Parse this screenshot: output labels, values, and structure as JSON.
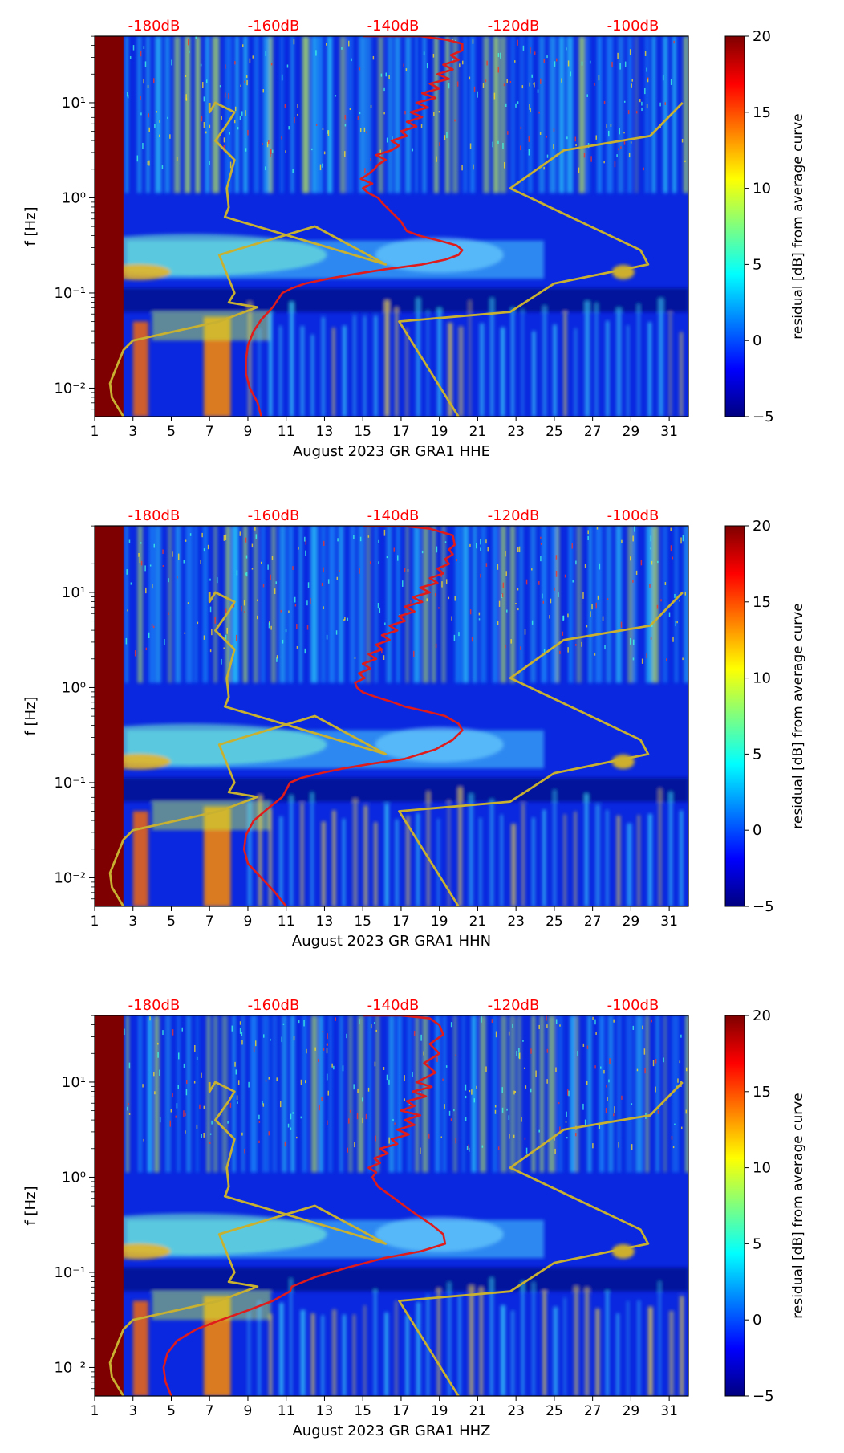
{
  "figure": {
    "station": "August 2023 GR GRA1",
    "colorbar": {
      "label": "residual [dB] from average curve",
      "ticks": [
        "20",
        "15",
        "10",
        "5",
        "0",
        "−5"
      ],
      "colors": [
        "#00007f",
        "#0000ff",
        "#007fff",
        "#00ffff",
        "#7fff7f",
        "#ffff00",
        "#ff7f00",
        "#ff0000",
        "#7f0000"
      ]
    },
    "colors": {
      "text": "#000000",
      "db_label": "#ff0000",
      "mean_curve": "#e01b1b",
      "model_curve": "#c8b030"
    }
  },
  "chart_data": [
    {
      "type": "heatmap",
      "channel": "HHE",
      "xlabel": "August 2023 GR GRA1  HHE",
      "ylabel": "f [Hz]",
      "x_ticks": [
        "1",
        "3",
        "5",
        "7",
        "9",
        "11",
        "13",
        "15",
        "17",
        "19",
        "21",
        "23",
        "25",
        "27",
        "29",
        "31"
      ],
      "y_ticks": [
        "10¹",
        "10⁰",
        "10⁻¹",
        "10⁻²"
      ],
      "top_db_ticks": [
        "-180dB",
        "-160dB",
        "-140dB",
        "-120dB",
        "-100dB"
      ],
      "xlim": [
        1,
        32
      ],
      "ylim_log10": [
        -2.3,
        1.7
      ],
      "clim": [
        -5,
        20
      ],
      "overlays": [
        {
          "name": "low noise model",
          "x_day": [
            2.5,
            1.9,
            1.8,
            2.5,
            3.0,
            7.5,
            9.5,
            8.0,
            8.3,
            7.5,
            12.5,
            16.2,
            7.8,
            8.0,
            7.9,
            8.3,
            7.3,
            8.0,
            8.3,
            7.3,
            7.0,
            7.0
          ],
          "log10_f": [
            -2.3,
            -2.1,
            -1.95,
            -1.6,
            -1.5,
            -1.3,
            -1.15,
            -1.1,
            -1.0,
            -0.6,
            -0.3,
            -0.7,
            -0.2,
            -0.1,
            0.1,
            0.4,
            0.6,
            0.8,
            0.9,
            1.0,
            0.9,
            1.0
          ]
        },
        {
          "name": "high noise model",
          "x_day": [
            20.0,
            16.9,
            22.7,
            25.0,
            29.9,
            29.5,
            22.7,
            25.5,
            30.0,
            31.7
          ],
          "log10_f": [
            -2.3,
            -1.3,
            -1.2,
            -0.9,
            -0.7,
            -0.55,
            0.1,
            0.5,
            0.65,
            1.0
          ]
        },
        {
          "name": "mean PSD",
          "x_day": [
            9.7,
            9.5,
            9.1,
            8.9,
            8.9,
            9.0,
            9.3,
            9.7,
            10.3,
            10.8,
            11.3,
            12.0,
            13.2,
            14.6,
            16.2,
            18.1,
            19.3,
            20.0,
            20.2,
            19.9,
            19.0,
            18.0,
            17.3,
            17.0,
            16.5,
            16.0,
            15.8,
            15.3,
            15.0,
            15.5,
            14.9,
            15.3,
            15.6,
            15.8,
            16.2,
            15.7,
            16.5,
            16.9,
            16.5,
            17.3,
            17.0,
            17.8,
            17.3,
            18.1,
            17.5,
            18.4,
            17.8,
            18.8,
            18.1,
            19.0,
            18.5,
            19.5,
            18.9,
            19.7,
            19.2,
            20.0,
            19.6,
            20.2,
            20.2,
            19.4,
            18.0,
            15.0
          ],
          "log10_f": [
            -2.3,
            -2.15,
            -2.0,
            -1.85,
            -1.7,
            -1.55,
            -1.4,
            -1.28,
            -1.15,
            -1.0,
            -0.95,
            -0.9,
            -0.85,
            -0.8,
            -0.75,
            -0.7,
            -0.65,
            -0.6,
            -0.55,
            -0.5,
            -0.45,
            -0.4,
            -0.35,
            -0.25,
            -0.15,
            -0.05,
            0.0,
            0.05,
            0.1,
            0.15,
            0.2,
            0.25,
            0.3,
            0.35,
            0.4,
            0.45,
            0.5,
            0.55,
            0.6,
            0.65,
            0.7,
            0.75,
            0.8,
            0.85,
            0.9,
            0.95,
            1.0,
            1.05,
            1.1,
            1.15,
            1.2,
            1.25,
            1.3,
            1.35,
            1.4,
            1.45,
            1.5,
            1.55,
            1.62,
            1.66,
            1.7,
            1.7
          ]
        }
      ]
    },
    {
      "type": "heatmap",
      "channel": "HHN",
      "xlabel": "August 2023 GR GRA1  HHN",
      "ylabel": "f [Hz]",
      "x_ticks": [
        "1",
        "3",
        "5",
        "7",
        "9",
        "11",
        "13",
        "15",
        "17",
        "19",
        "21",
        "23",
        "25",
        "27",
        "29",
        "31"
      ],
      "y_ticks": [
        "10¹",
        "10⁰",
        "10⁻¹",
        "10⁻²"
      ],
      "top_db_ticks": [
        "-180dB",
        "-160dB",
        "-140dB",
        "-120dB",
        "-100dB"
      ],
      "xlim": [
        1,
        32
      ],
      "ylim_log10": [
        -2.3,
        1.7
      ],
      "clim": [
        -5,
        20
      ],
      "overlays": [
        {
          "name": "low noise model",
          "x_day": [
            2.5,
            1.9,
            1.8,
            2.5,
            3.0,
            7.5,
            9.5,
            8.0,
            8.3,
            7.5,
            12.5,
            16.2,
            7.8,
            8.0,
            7.9,
            8.3,
            7.3,
            8.0,
            8.3,
            7.3,
            7.0,
            7.0
          ],
          "log10_f": [
            -2.3,
            -2.1,
            -1.95,
            -1.6,
            -1.5,
            -1.3,
            -1.15,
            -1.1,
            -1.0,
            -0.6,
            -0.3,
            -0.7,
            -0.2,
            -0.1,
            0.1,
            0.4,
            0.6,
            0.8,
            0.9,
            1.0,
            0.9,
            1.0
          ]
        },
        {
          "name": "high noise model",
          "x_day": [
            20.0,
            16.9,
            22.7,
            25.0,
            29.9,
            29.5,
            22.7,
            25.5,
            30.0,
            31.7
          ],
          "log10_f": [
            -2.3,
            -1.3,
            -1.2,
            -0.9,
            -0.7,
            -0.55,
            0.1,
            0.5,
            0.65,
            1.0
          ]
        },
        {
          "name": "mean PSD",
          "x_day": [
            11.0,
            10.4,
            9.7,
            9.0,
            8.8,
            8.9,
            9.3,
            10.0,
            10.8,
            11.2,
            11.8,
            12.8,
            14.0,
            15.5,
            17.2,
            18.8,
            19.7,
            20.2,
            20.0,
            19.3,
            18.3,
            17.2,
            16.5,
            15.7,
            15.0,
            14.7,
            14.6,
            15.1,
            14.8,
            15.4,
            15.0,
            15.7,
            15.3,
            16.0,
            15.7,
            16.4,
            16.0,
            16.8,
            16.4,
            17.2,
            16.9,
            17.7,
            17.2,
            18.1,
            17.6,
            18.5,
            18.0,
            18.9,
            18.5,
            19.2,
            18.9,
            19.5,
            19.3,
            19.7,
            19.5,
            19.8,
            19.7,
            18.5,
            17.0,
            15.0
          ],
          "log10_f": [
            -2.3,
            -2.15,
            -2.0,
            -1.85,
            -1.7,
            -1.55,
            -1.4,
            -1.28,
            -1.15,
            -1.0,
            -0.95,
            -0.9,
            -0.85,
            -0.8,
            -0.75,
            -0.65,
            -0.55,
            -0.45,
            -0.38,
            -0.3,
            -0.25,
            -0.2,
            -0.15,
            -0.1,
            -0.05,
            0.0,
            0.05,
            0.1,
            0.15,
            0.2,
            0.25,
            0.3,
            0.35,
            0.4,
            0.45,
            0.5,
            0.55,
            0.6,
            0.65,
            0.7,
            0.75,
            0.8,
            0.85,
            0.9,
            0.95,
            1.0,
            1.05,
            1.1,
            1.15,
            1.2,
            1.25,
            1.3,
            1.35,
            1.4,
            1.45,
            1.5,
            1.6,
            1.67,
            1.7,
            1.7
          ]
        }
      ]
    },
    {
      "type": "heatmap",
      "channel": "HHZ",
      "xlabel": "August 2023 GR GRA1  HHZ",
      "ylabel": "f [Hz]",
      "x_ticks": [
        "1",
        "3",
        "5",
        "7",
        "9",
        "11",
        "13",
        "15",
        "17",
        "19",
        "21",
        "23",
        "25",
        "27",
        "29",
        "31"
      ],
      "y_ticks": [
        "10¹",
        "10⁰",
        "10⁻¹",
        "10⁻²"
      ],
      "top_db_ticks": [
        "-180dB",
        "-160dB",
        "-140dB",
        "-120dB",
        "-100dB"
      ],
      "xlim": [
        1,
        32
      ],
      "ylim_log10": [
        -2.3,
        1.7
      ],
      "clim": [
        -5,
        20
      ],
      "overlays": [
        {
          "name": "low noise model",
          "x_day": [
            2.5,
            1.9,
            1.8,
            2.5,
            3.0,
            7.5,
            9.5,
            8.0,
            8.3,
            7.5,
            12.5,
            16.2,
            7.8,
            8.0,
            7.9,
            8.3,
            7.3,
            8.0,
            8.3,
            7.3,
            7.0,
            7.0
          ],
          "log10_f": [
            -2.3,
            -2.1,
            -1.95,
            -1.6,
            -1.5,
            -1.3,
            -1.15,
            -1.1,
            -1.0,
            -0.6,
            -0.3,
            -0.7,
            -0.2,
            -0.1,
            0.1,
            0.4,
            0.6,
            0.8,
            0.9,
            1.0,
            0.9,
            1.0
          ]
        },
        {
          "name": "high noise model",
          "x_day": [
            20.0,
            16.9,
            22.7,
            25.0,
            29.9,
            29.5,
            22.7,
            25.5,
            30.0,
            31.7
          ],
          "log10_f": [
            -2.3,
            -1.3,
            -1.2,
            -0.9,
            -0.7,
            -0.55,
            0.1,
            0.5,
            0.65,
            1.0
          ]
        },
        {
          "name": "mean PSD",
          "x_day": [
            5.0,
            4.7,
            4.6,
            4.8,
            5.3,
            6.3,
            7.6,
            9.0,
            10.3,
            11.2,
            11.3,
            12.5,
            14.2,
            16.1,
            18.0,
            19.3,
            19.2,
            18.6,
            17.5,
            16.5,
            15.8,
            15.5,
            15.7,
            15.3,
            15.9,
            15.6,
            16.3,
            15.9,
            16.8,
            16.5,
            17.4,
            16.8,
            17.7,
            17.2,
            18.0,
            17.0,
            17.7,
            17.3,
            18.3,
            17.6,
            18.6,
            17.8,
            18.8,
            18.2,
            19.0,
            18.5,
            19.2,
            19.0,
            18.5,
            17.0,
            15.0
          ],
          "log10_f": [
            -2.3,
            -2.15,
            -2.0,
            -1.85,
            -1.72,
            -1.6,
            -1.5,
            -1.4,
            -1.3,
            -1.2,
            -1.15,
            -1.05,
            -0.95,
            -0.85,
            -0.78,
            -0.7,
            -0.6,
            -0.5,
            -0.35,
            -0.2,
            -0.1,
            0.0,
            0.05,
            0.1,
            0.15,
            0.2,
            0.25,
            0.3,
            0.35,
            0.4,
            0.45,
            0.5,
            0.55,
            0.6,
            0.65,
            0.7,
            0.75,
            0.8,
            0.85,
            0.9,
            0.95,
            1.0,
            1.1,
            1.2,
            1.3,
            1.4,
            1.5,
            1.6,
            1.67,
            1.7,
            1.7
          ]
        }
      ]
    }
  ]
}
